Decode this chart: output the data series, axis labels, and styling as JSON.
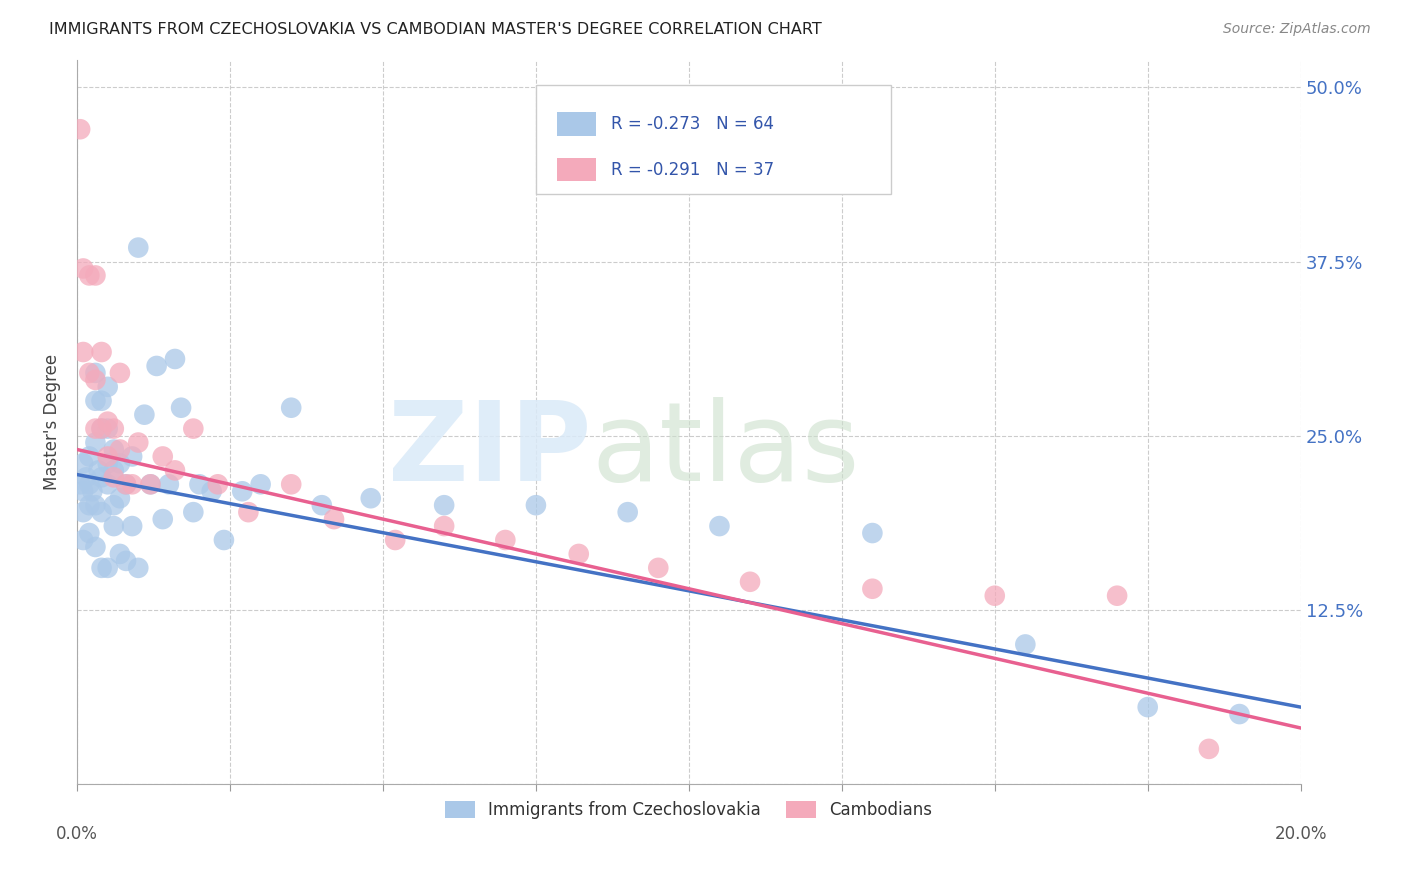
{
  "title": "IMMIGRANTS FROM CZECHOSLOVAKIA VS CAMBODIAN MASTER'S DEGREE CORRELATION CHART",
  "source": "Source: ZipAtlas.com",
  "ylabel": "Master's Degree",
  "yticks": [
    0.0,
    0.125,
    0.25,
    0.375,
    0.5
  ],
  "ytick_labels": [
    "",
    "12.5%",
    "25.0%",
    "37.5%",
    "50.0%"
  ],
  "xlim": [
    0.0,
    0.2
  ],
  "ylim": [
    0.0,
    0.52
  ],
  "legend_label1": "Immigrants from Czechoslovakia",
  "legend_label2": "Cambodians",
  "R1": -0.273,
  "N1": 64,
  "R2": -0.291,
  "N2": 37,
  "color_blue": "#aac8e8",
  "color_pink": "#f4aabb",
  "line_color_blue": "#4472c4",
  "line_color_pink": "#e86090",
  "blue_x": [
    0.0005,
    0.001,
    0.001,
    0.001,
    0.001,
    0.0015,
    0.002,
    0.002,
    0.002,
    0.002,
    0.0025,
    0.003,
    0.003,
    0.003,
    0.003,
    0.003,
    0.0035,
    0.004,
    0.004,
    0.004,
    0.004,
    0.004,
    0.005,
    0.005,
    0.005,
    0.005,
    0.005,
    0.006,
    0.006,
    0.006,
    0.006,
    0.007,
    0.007,
    0.007,
    0.008,
    0.008,
    0.009,
    0.009,
    0.01,
    0.01,
    0.011,
    0.012,
    0.013,
    0.014,
    0.015,
    0.016,
    0.017,
    0.019,
    0.02,
    0.022,
    0.024,
    0.027,
    0.03,
    0.035,
    0.04,
    0.048,
    0.06,
    0.075,
    0.09,
    0.105,
    0.13,
    0.155,
    0.175,
    0.19
  ],
  "blue_y": [
    0.215,
    0.23,
    0.21,
    0.195,
    0.175,
    0.22,
    0.235,
    0.215,
    0.2,
    0.18,
    0.21,
    0.295,
    0.275,
    0.245,
    0.2,
    0.17,
    0.225,
    0.275,
    0.255,
    0.22,
    0.195,
    0.155,
    0.285,
    0.255,
    0.23,
    0.215,
    0.155,
    0.24,
    0.225,
    0.2,
    0.185,
    0.23,
    0.205,
    0.165,
    0.215,
    0.16,
    0.235,
    0.185,
    0.385,
    0.155,
    0.265,
    0.215,
    0.3,
    0.19,
    0.215,
    0.305,
    0.27,
    0.195,
    0.215,
    0.21,
    0.175,
    0.21,
    0.215,
    0.27,
    0.2,
    0.205,
    0.2,
    0.2,
    0.195,
    0.185,
    0.18,
    0.1,
    0.055,
    0.05
  ],
  "pink_x": [
    0.0005,
    0.001,
    0.001,
    0.002,
    0.002,
    0.003,
    0.003,
    0.003,
    0.004,
    0.004,
    0.005,
    0.005,
    0.006,
    0.006,
    0.007,
    0.007,
    0.008,
    0.009,
    0.01,
    0.012,
    0.014,
    0.016,
    0.019,
    0.023,
    0.028,
    0.035,
    0.042,
    0.052,
    0.06,
    0.07,
    0.082,
    0.095,
    0.11,
    0.13,
    0.15,
    0.17,
    0.185
  ],
  "pink_y": [
    0.47,
    0.37,
    0.31,
    0.365,
    0.295,
    0.365,
    0.29,
    0.255,
    0.31,
    0.255,
    0.26,
    0.235,
    0.255,
    0.22,
    0.295,
    0.24,
    0.215,
    0.215,
    0.245,
    0.215,
    0.235,
    0.225,
    0.255,
    0.215,
    0.195,
    0.215,
    0.19,
    0.175,
    0.185,
    0.175,
    0.165,
    0.155,
    0.145,
    0.14,
    0.135,
    0.135,
    0.025
  ],
  "xtick_vals": [
    0.0,
    0.025,
    0.05,
    0.075,
    0.1,
    0.125,
    0.15,
    0.175,
    0.2
  ]
}
